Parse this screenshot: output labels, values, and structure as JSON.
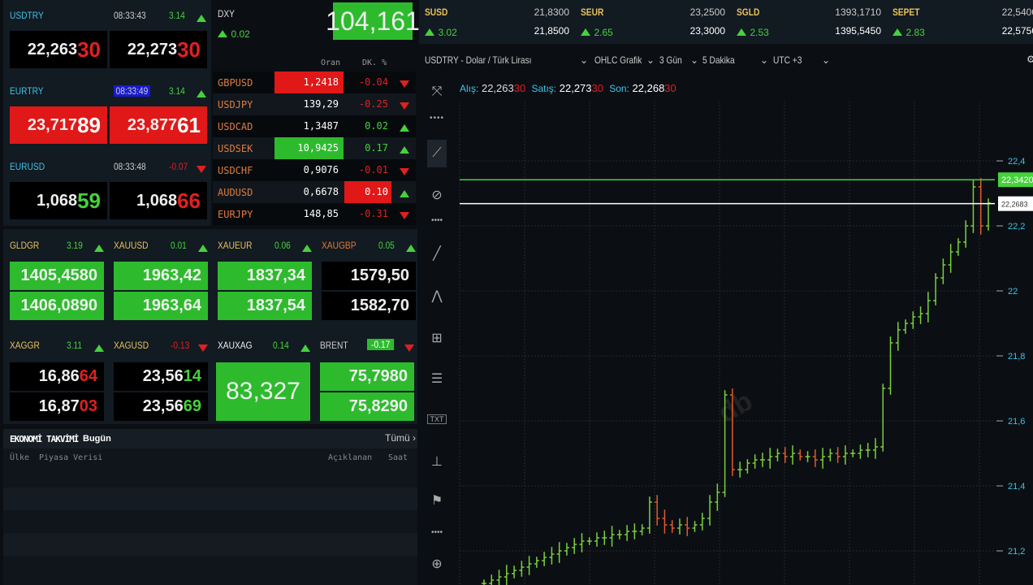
{
  "fx": [
    {
      "symbol": "USDTRY",
      "time": "08:33:43",
      "time_highlight": false,
      "change": "3.14",
      "dir": "up",
      "bid_main": "22,263",
      "bid_tail": "30",
      "bid_tail_color": "#e02020",
      "ask_main": "22,273",
      "ask_tail": "30",
      "ask_tail_color": "#e02020",
      "bg": "black"
    },
    {
      "symbol": "EURTRY",
      "time": "08:33:49",
      "time_highlight": true,
      "change": "3.14",
      "dir": "up",
      "bid_main": "23,717",
      "bid_tail": "89",
      "bid_tail_color": "#ffffff",
      "ask_main": "23,877",
      "ask_tail": "61",
      "ask_tail_color": "#ffffff",
      "bg": "red"
    },
    {
      "symbol": "EURUSD",
      "time": "08:33:48",
      "time_highlight": false,
      "change": "-0.07",
      "dir": "down",
      "bid_main": "1,068",
      "bid_tail": "59",
      "bid_tail_color": "#45d23c",
      "ask_main": "1,068",
      "ask_tail": "66",
      "ask_tail_color": "#e02020",
      "bg": "black"
    }
  ],
  "dxy": {
    "symbol": "DXY",
    "change": "0.02",
    "value": "104,161"
  },
  "cross_table": {
    "headers": [
      "Oran",
      "DK. %"
    ],
    "rows": [
      {
        "symbol": "GBPUSD",
        "rate": "1,2418",
        "rate_bg": "red",
        "change": "-0.04",
        "change_bg": "",
        "dir": "down"
      },
      {
        "symbol": "USDJPY",
        "rate": "139,29",
        "rate_bg": "",
        "change": "-0.25",
        "change_bg": "",
        "dir": "down"
      },
      {
        "symbol": "USDCAD",
        "rate": "1,3487",
        "rate_bg": "",
        "change": "0.02",
        "change_bg": "",
        "dir": "up"
      },
      {
        "symbol": "USDSEK",
        "rate": "10,9425",
        "rate_bg": "green",
        "change": "0.17",
        "change_bg": "",
        "dir": "up"
      },
      {
        "symbol": "USDCHF",
        "rate": "0,9076",
        "rate_bg": "",
        "change": "-0.01",
        "change_bg": "",
        "dir": "down"
      },
      {
        "symbol": "AUDUSD",
        "rate": "0,6678",
        "rate_bg": "",
        "change": "0.10",
        "change_bg": "red",
        "dir": "up"
      },
      {
        "symbol": "EURJPY",
        "rate": "148,85",
        "rate_bg": "",
        "change": "-0.31",
        "change_bg": "",
        "dir": "down"
      }
    ]
  },
  "metals_row1": [
    {
      "symbol": "GLDGR",
      "symbol_color": "#e6c25a",
      "change": "3.19",
      "dir": "up",
      "bid": "1405,4580",
      "ask": "1406,0890",
      "bg": "green"
    },
    {
      "symbol": "XAUUSD",
      "symbol_color": "#e6c25a",
      "change": "0.01",
      "dir": "up",
      "bid": "1963,42",
      "ask": "1963,64",
      "bg": "green"
    },
    {
      "symbol": "XAUEUR",
      "symbol_color": "#e6c25a",
      "change": "0.06",
      "dir": "up",
      "bid": "1837,34",
      "ask": "1837,54",
      "bg": "green"
    },
    {
      "symbol": "XAUGBP",
      "symbol_color": "#e07a3a",
      "change": "0.05",
      "dir": "up",
      "bid": "1579,50",
      "ask": "1582,70",
      "bg": "black"
    }
  ],
  "metals_row2": [
    {
      "symbol": "XAGGR",
      "change": "3.11",
      "dir": "up",
      "bid_main": "16,86",
      "bid_tail": "64",
      "bid_tail_color": "#e02020",
      "ask_main": "16,87",
      "ask_tail": "03",
      "ask_tail_color": "#e02020"
    },
    {
      "symbol": "XAGUSD",
      "change": "-0.13",
      "dir": "down",
      "bid_main": "23,56",
      "bid_tail": "14",
      "bid_tail_color": "#45d23c",
      "ask_main": "23,56",
      "ask_tail": "69",
      "ask_tail_color": "#45d23c"
    }
  ],
  "xauxag": {
    "symbol": "XAUXAG",
    "change": "0.14",
    "value": "83,327"
  },
  "brent": {
    "symbol": "BRENT",
    "change": "-0.17",
    "bid": "75,7980",
    "ask": "75,8290"
  },
  "calendar": {
    "title": "EKONOMİ TAKVİMİ",
    "subtitle": "Bugün",
    "all_link": "Tümü ›",
    "columns": [
      "Ülke",
      "Piyasa Verisi",
      "Açıklanan",
      "Saat"
    ]
  },
  "top_quotes": [
    {
      "symbol": "SUSD",
      "change": "3.02",
      "bid": "21,8300",
      "ask": "21,8500"
    },
    {
      "symbol": "SEUR",
      "change": "2.65",
      "bid": "23,2500",
      "ask": "23,3000"
    },
    {
      "symbol": "SGLD",
      "change": "2.53",
      "bid": "1393,1710",
      "ask": "1395,5450"
    },
    {
      "symbol": "SEPET",
      "change": "2.83",
      "bid": "22,5400",
      "ask": "22,5750"
    }
  ],
  "chart_toolbar": {
    "instrument": "USDTRY - Dolar / Türk Lirası",
    "chart_type": "OHLC Grafik",
    "range": "3 Gün",
    "interval": "5 Dakika",
    "timezone": "UTC +3"
  },
  "chart_info": {
    "bid_label": "Alış:",
    "bid_main": "22,263",
    "bid_tail": "30",
    "ask_label": "Satış:",
    "ask_main": "22,273",
    "ask_tail": "30",
    "last_label": "Son:",
    "last_main": "22,268",
    "last_tail": "30"
  },
  "chart_data": {
    "type": "ohlc",
    "y_ticks": [
      "22,4",
      "22,2",
      "22",
      "21,8",
      "21,6",
      "21,4",
      "21,2"
    ],
    "ylim": [
      21.095,
      22.53
    ],
    "markers": [
      {
        "label": "22,3420",
        "value": 22.342,
        "color": "#45d23c"
      },
      {
        "label": "22,2683",
        "value": 22.2683,
        "color": "#ffffff"
      }
    ],
    "values": [
      21.1,
      21.11,
      21.12,
      21.13,
      21.14,
      21.15,
      21.16,
      21.17,
      21.18,
      21.19,
      21.2,
      21.21,
      21.22,
      21.23,
      21.23,
      21.24,
      21.24,
      21.25,
      21.25,
      21.26,
      21.26,
      21.27,
      21.35,
      21.3,
      21.28,
      21.27,
      21.28,
      21.27,
      21.28,
      21.3,
      21.35,
      21.38,
      21.68,
      21.45,
      21.45,
      21.47,
      21.48,
      21.48,
      21.49,
      21.5,
      21.49,
      21.5,
      21.49,
      21.49,
      21.48,
      21.49,
      21.5,
      21.49,
      21.5,
      21.5,
      21.51,
      21.51,
      21.52,
      21.7,
      21.84,
      21.88,
      21.9,
      21.92,
      21.93,
      21.97,
      22.04,
      22.08,
      22.12,
      22.15,
      22.2,
      22.32,
      22.2,
      22.27
    ]
  }
}
